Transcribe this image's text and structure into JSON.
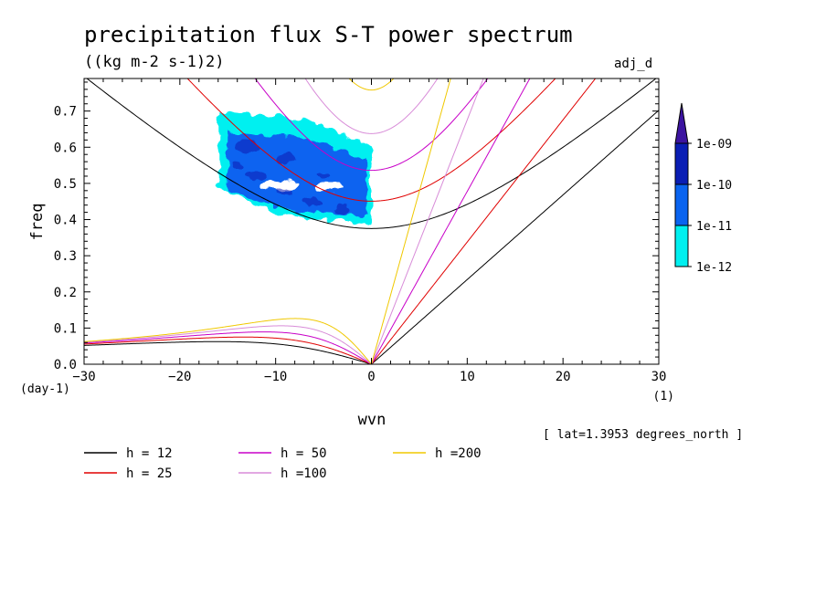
{
  "chart_data": {
    "type": "heatmap",
    "title": "precipitation flux S-T power spectrum",
    "subtitle": "((kg m-2 s-1)2)",
    "top_right_label": "adj_d",
    "xlabel": "wvn",
    "ylabel": "freq",
    "x_unit": "(1)",
    "y_unit": "(day-1)",
    "footnote": "[ lat=1.3953 degrees_north ]",
    "xlim": [
      -30,
      30
    ],
    "ylim": [
      0,
      0.79
    ],
    "x_ticks": [
      -30,
      -20,
      -10,
      0,
      10,
      20,
      30
    ],
    "y_ticks": [
      0.0,
      0.1,
      0.2,
      0.3,
      0.4,
      0.5,
      0.6,
      0.7
    ],
    "colorbar": {
      "labels": [
        "1e-12",
        "1e-11",
        "1e-10",
        "1e-09"
      ],
      "colors": [
        "#00f0f0",
        "#0a64f0",
        "#0a1eb4",
        "#3c14a0"
      ]
    },
    "contour_levels": [
      {
        "level": "1e-12",
        "color": "#00f0f0",
        "region": {
          "x": [
            -16,
            0
          ],
          "y": [
            0.37,
            0.72
          ]
        }
      },
      {
        "level": "1e-11",
        "color": "#0a64f0",
        "region": {
          "x": [
            -15,
            -0.5
          ],
          "y": [
            0.39,
            0.66
          ]
        }
      }
    ],
    "dispersion_curves": [
      {
        "name": "h = 12",
        "h": 12,
        "color": "#000000"
      },
      {
        "name": "h = 25",
        "h": 25,
        "color": "#e00000"
      },
      {
        "name": "h = 50",
        "h": 50,
        "color": "#c800c8"
      },
      {
        "name": "h =100",
        "h": 100,
        "color": "#d88cd8"
      },
      {
        "name": "h =200",
        "h": 200,
        "color": "#f0c800"
      }
    ]
  }
}
